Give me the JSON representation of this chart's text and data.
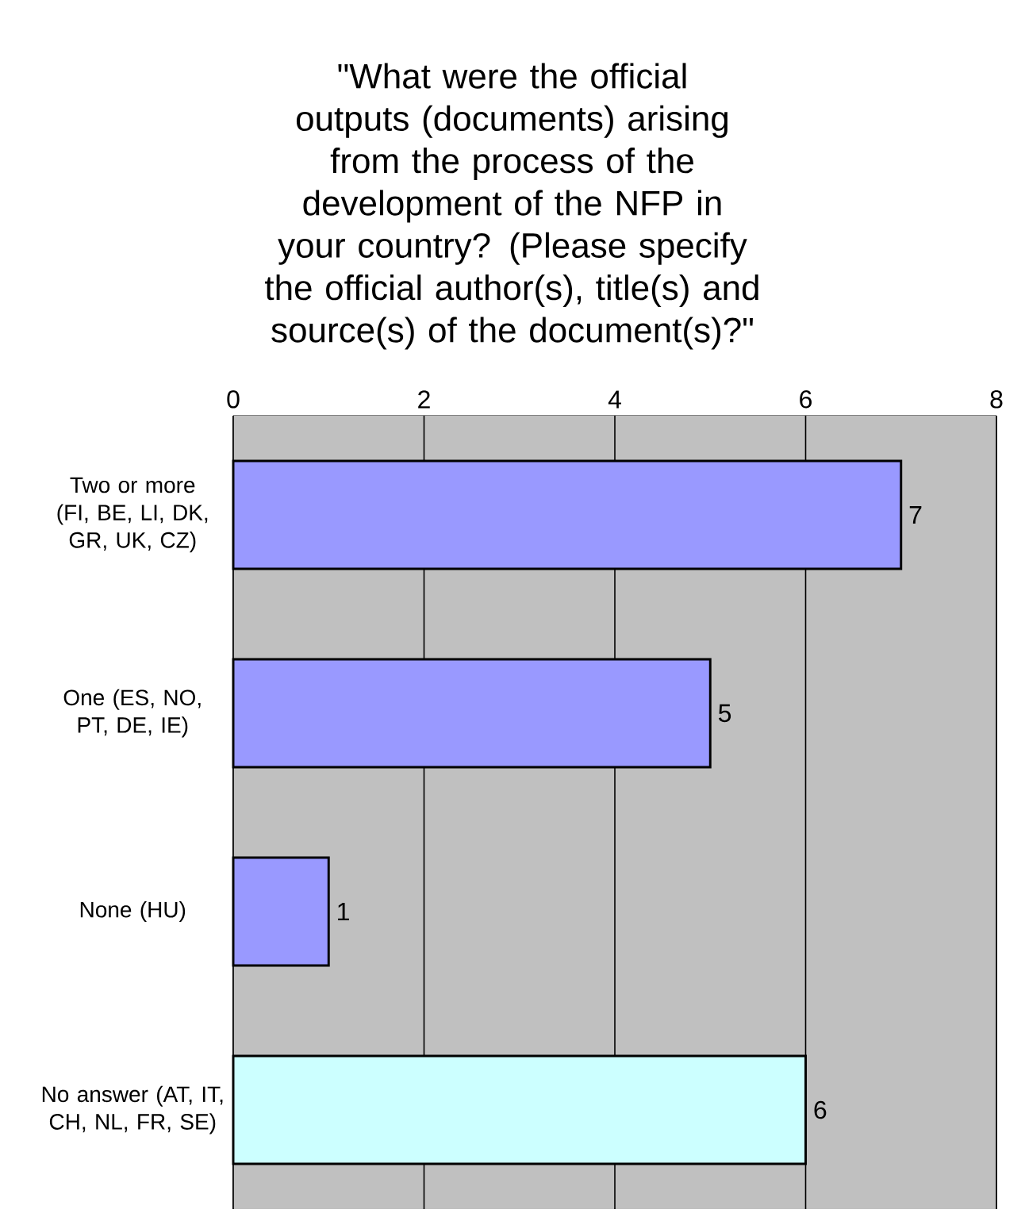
{
  "chart_data": {
    "type": "bar",
    "orientation": "horizontal",
    "title": "\"What were the official outputs (documents) arising from the process of the development of the NFP in your country? (Please specify the official author(s), title(s) and source(s) of the document(s)?\"",
    "categories": [
      "Two or more (FI, BE, LI, DK, GR, UK, CZ)",
      "One (ES, NO, PT, DE, IE)",
      "None (HU)",
      "No answer (AT, IT, CH, NL, FR, SE)"
    ],
    "values": [
      7,
      5,
      1,
      6
    ],
    "colors": [
      "#9999ff",
      "#9999ff",
      "#9999ff",
      "#ccffff"
    ],
    "xlim": [
      0,
      8
    ],
    "xticks": [
      0,
      2,
      4,
      6,
      8
    ],
    "grid": "x",
    "data_labels": true
  }
}
